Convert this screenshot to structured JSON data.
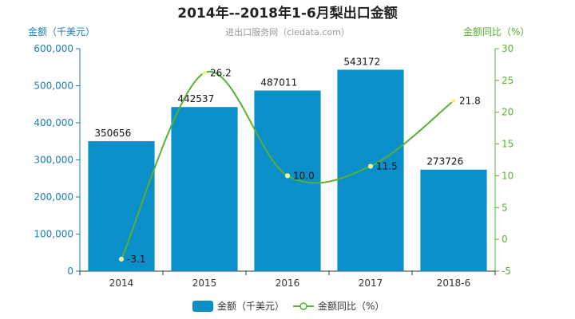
{
  "chart_data": {
    "type": "bar",
    "title": "2014年--2018年1-6月梨出口金额",
    "subtitle": "进出口服务网（ciedata.com）",
    "categories": [
      "2014",
      "2015",
      "2016",
      "2017",
      "2018-6"
    ],
    "y_left": {
      "label": "金额（千美元）",
      "ylim": [
        0,
        600000
      ],
      "ticks": [
        "0",
        "100,000",
        "200,000",
        "300,000",
        "400,000",
        "500,000",
        "600,000"
      ]
    },
    "y_right": {
      "label": "金额同比（%）",
      "ylim": [
        -5,
        30
      ],
      "ticks": [
        "-5",
        "0",
        "5",
        "10",
        "15",
        "20",
        "25",
        "30"
      ]
    },
    "series": [
      {
        "name": "金额（千美元）",
        "type": "bar",
        "axis": "left",
        "values": [
          350656,
          442537,
          487011,
          543172,
          273726
        ],
        "labels": [
          "350656",
          "442537",
          "487011",
          "543172",
          "273726"
        ]
      },
      {
        "name": "金额同比（%）",
        "type": "line",
        "axis": "right",
        "values": [
          -3.1,
          26.2,
          10.0,
          11.5,
          21.8
        ],
        "labels": [
          "-3.1",
          "26.2",
          "10.0",
          "11.5",
          "21.8"
        ]
      }
    ],
    "legend_position": "bottom-center",
    "grid": false,
    "colors": {
      "bar": "#0a8fc9",
      "line": "#5ab034",
      "left_axis": "#1a7fb5",
      "right_axis": "#5ab034"
    }
  }
}
